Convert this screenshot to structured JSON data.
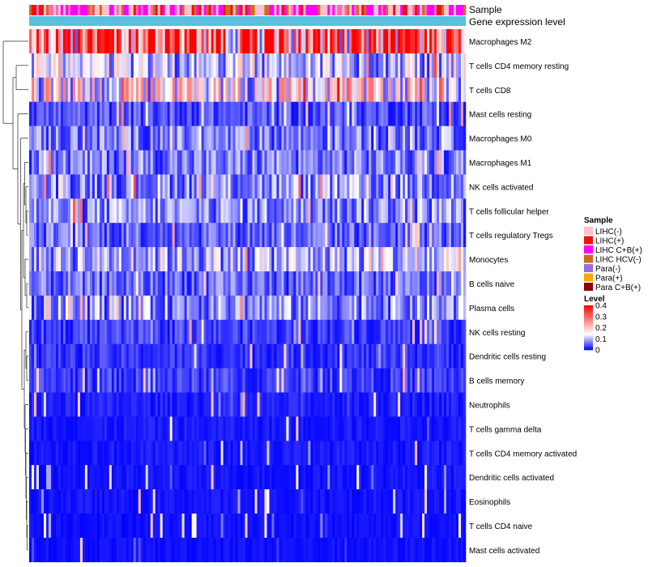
{
  "chart_data": {
    "type": "heatmap",
    "annotation_tracks": [
      "Sample",
      "Gene expression level"
    ],
    "rows": [
      {
        "name": "Macrophages M2",
        "mean": 0.29
      },
      {
        "name": "T cells CD4 memory resting",
        "mean": 0.1
      },
      {
        "name": "T cells CD8",
        "mean": 0.14
      },
      {
        "name": "Mast cells resting",
        "mean": 0.04
      },
      {
        "name": "Macrophages M0",
        "mean": 0.06
      },
      {
        "name": "Macrophages M1",
        "mean": 0.06
      },
      {
        "name": "NK cells activated",
        "mean": 0.07
      },
      {
        "name": "T cells follicular helper",
        "mean": 0.07
      },
      {
        "name": "T cells regulatory  Tregs",
        "mean": 0.05
      },
      {
        "name": "Monocytes",
        "mean": 0.09
      },
      {
        "name": "B cells naive",
        "mean": 0.05
      },
      {
        "name": "Plasma cells",
        "mean": 0.07
      },
      {
        "name": "NK cells resting",
        "mean": 0.03
      },
      {
        "name": "Dendritic cells resting",
        "mean": 0.025
      },
      {
        "name": "B cells memory",
        "mean": 0.03
      },
      {
        "name": "Neutrophils",
        "mean": 0.015
      },
      {
        "name": "T cells gamma delta",
        "mean": 0.012
      },
      {
        "name": "T cells CD4 memory activated",
        "mean": 0.012
      },
      {
        "name": "Dendritic cells activated",
        "mean": 0.01
      },
      {
        "name": "Eosinophils",
        "mean": 0.01
      },
      {
        "name": "T cells CD4 naive",
        "mean": 0.008
      },
      {
        "name": "Mast cells activated",
        "mean": 0.008
      }
    ],
    "sample_legend": {
      "title": "Sample",
      "entries": [
        {
          "label": "LIHC(-)",
          "color": "#ffc0cb"
        },
        {
          "label": "LIHC(+)",
          "color": "#ee1111"
        },
        {
          "label": "LIHC C+B(+)",
          "color": "#ff00ff"
        },
        {
          "label": "LIHC HCV(-)",
          "color": "#d2691e"
        },
        {
          "label": "Para(-)",
          "color": "#9370db"
        },
        {
          "label": "Para(+)",
          "color": "#ffa500"
        },
        {
          "label": "Para C+B(+)",
          "color": "#8b0000"
        }
      ]
    },
    "level_legend": {
      "title": "Level",
      "min": 0,
      "max": 0.4,
      "ticks": [
        {
          "label": "0.4",
          "value": 0.4
        },
        {
          "label": "0.3",
          "value": 0.3
        },
        {
          "label": "0.2",
          "value": 0.2
        },
        {
          "label": "0.1",
          "value": 0.1
        },
        {
          "label": "0",
          "value": 0
        }
      ]
    },
    "colors": {
      "low": "#0000ff",
      "mid": "#ffffff",
      "high": "#ff0000"
    }
  }
}
